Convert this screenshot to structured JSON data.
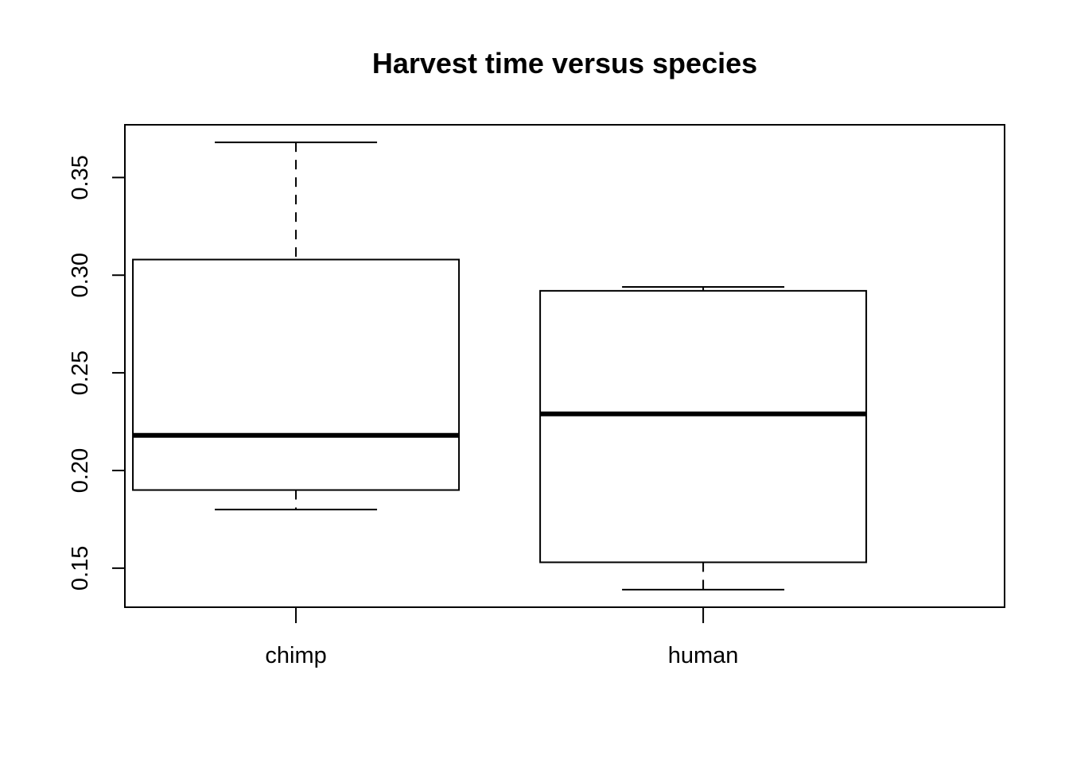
{
  "chart_data": {
    "type": "box",
    "title": "Harvest time versus species",
    "xlabel": "",
    "ylabel": "",
    "ylim": [
      0.13,
      0.377
    ],
    "y_ticks": [
      0.15,
      0.2,
      0.25,
      0.3,
      0.35
    ],
    "y_tick_labels": [
      "0.15",
      "0.20",
      "0.25",
      "0.30",
      "0.35"
    ],
    "categories": [
      "chimp",
      "human"
    ],
    "boxes": [
      {
        "category": "chimp",
        "min": 0.18,
        "q1": 0.19,
        "median": 0.218,
        "q3": 0.308,
        "max": 0.368
      },
      {
        "category": "human",
        "min": 0.139,
        "q1": 0.153,
        "median": 0.229,
        "q3": 0.292,
        "max": 0.294
      }
    ],
    "colors": {
      "stroke": "#000000",
      "box_fill": "#ffffff"
    },
    "grid": false,
    "legend": "none"
  }
}
